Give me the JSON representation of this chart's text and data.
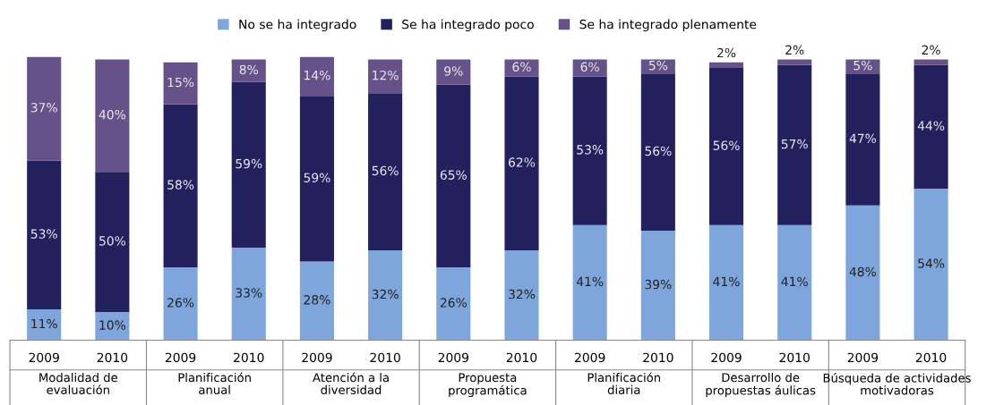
{
  "chart_data": {
    "type": "bar",
    "stacked": true,
    "legend": "top",
    "categories": [
      "2009",
      "2010",
      "2009",
      "2010",
      "2009",
      "2010",
      "2009",
      "2010",
      "2009",
      "2010",
      "2009",
      "2010",
      "2009",
      "2010"
    ],
    "annotations": [
      "Modalidad de\nevaluación",
      "Planificación\nanual",
      "Atención a la\ndiversidad",
      "Propuesta\nprogramática",
      "Planificación\ndiaria",
      "Desarrollo de\npropuestas áulicas",
      "Búsqueda de actividades\nmotivadoras"
    ],
    "series": [
      {
        "name": "No se ha integrado",
        "color": "#7ea6dc",
        "values": [
          11,
          10,
          26,
          33,
          28,
          32,
          26,
          32,
          41,
          39,
          41,
          41,
          48,
          54
        ],
        "value_labels": [
          "11%",
          "10%",
          "26%",
          "33%",
          "28%",
          "32%",
          "26%",
          "32%",
          "41%",
          "39%",
          "41%",
          "41%",
          "48%",
          "54%"
        ]
      },
      {
        "name": "Se ha integrado poco",
        "color": "#23205e",
        "values": [
          53,
          50,
          58,
          59,
          59,
          56,
          65,
          62,
          53,
          56,
          56,
          57,
          47,
          44
        ],
        "value_labels": [
          "53%",
          "50%",
          "58%",
          "59%",
          "59%",
          "56%",
          "65%",
          "62%",
          "53%",
          "56%",
          "56%",
          "57%",
          "47%",
          "44%"
        ]
      },
      {
        "name": "Se ha integrado plenamente",
        "color": "#665288",
        "values": [
          37,
          40,
          15,
          8,
          14,
          12,
          9,
          6,
          6,
          5,
          2,
          2,
          5,
          2
        ],
        "value_labels": [
          "37%",
          "40%",
          "15%",
          "8%",
          "14%",
          "12%",
          "9%",
          "6%",
          "6%",
          "5%",
          "2%",
          "2%",
          "5%",
          "2%"
        ]
      }
    ]
  }
}
